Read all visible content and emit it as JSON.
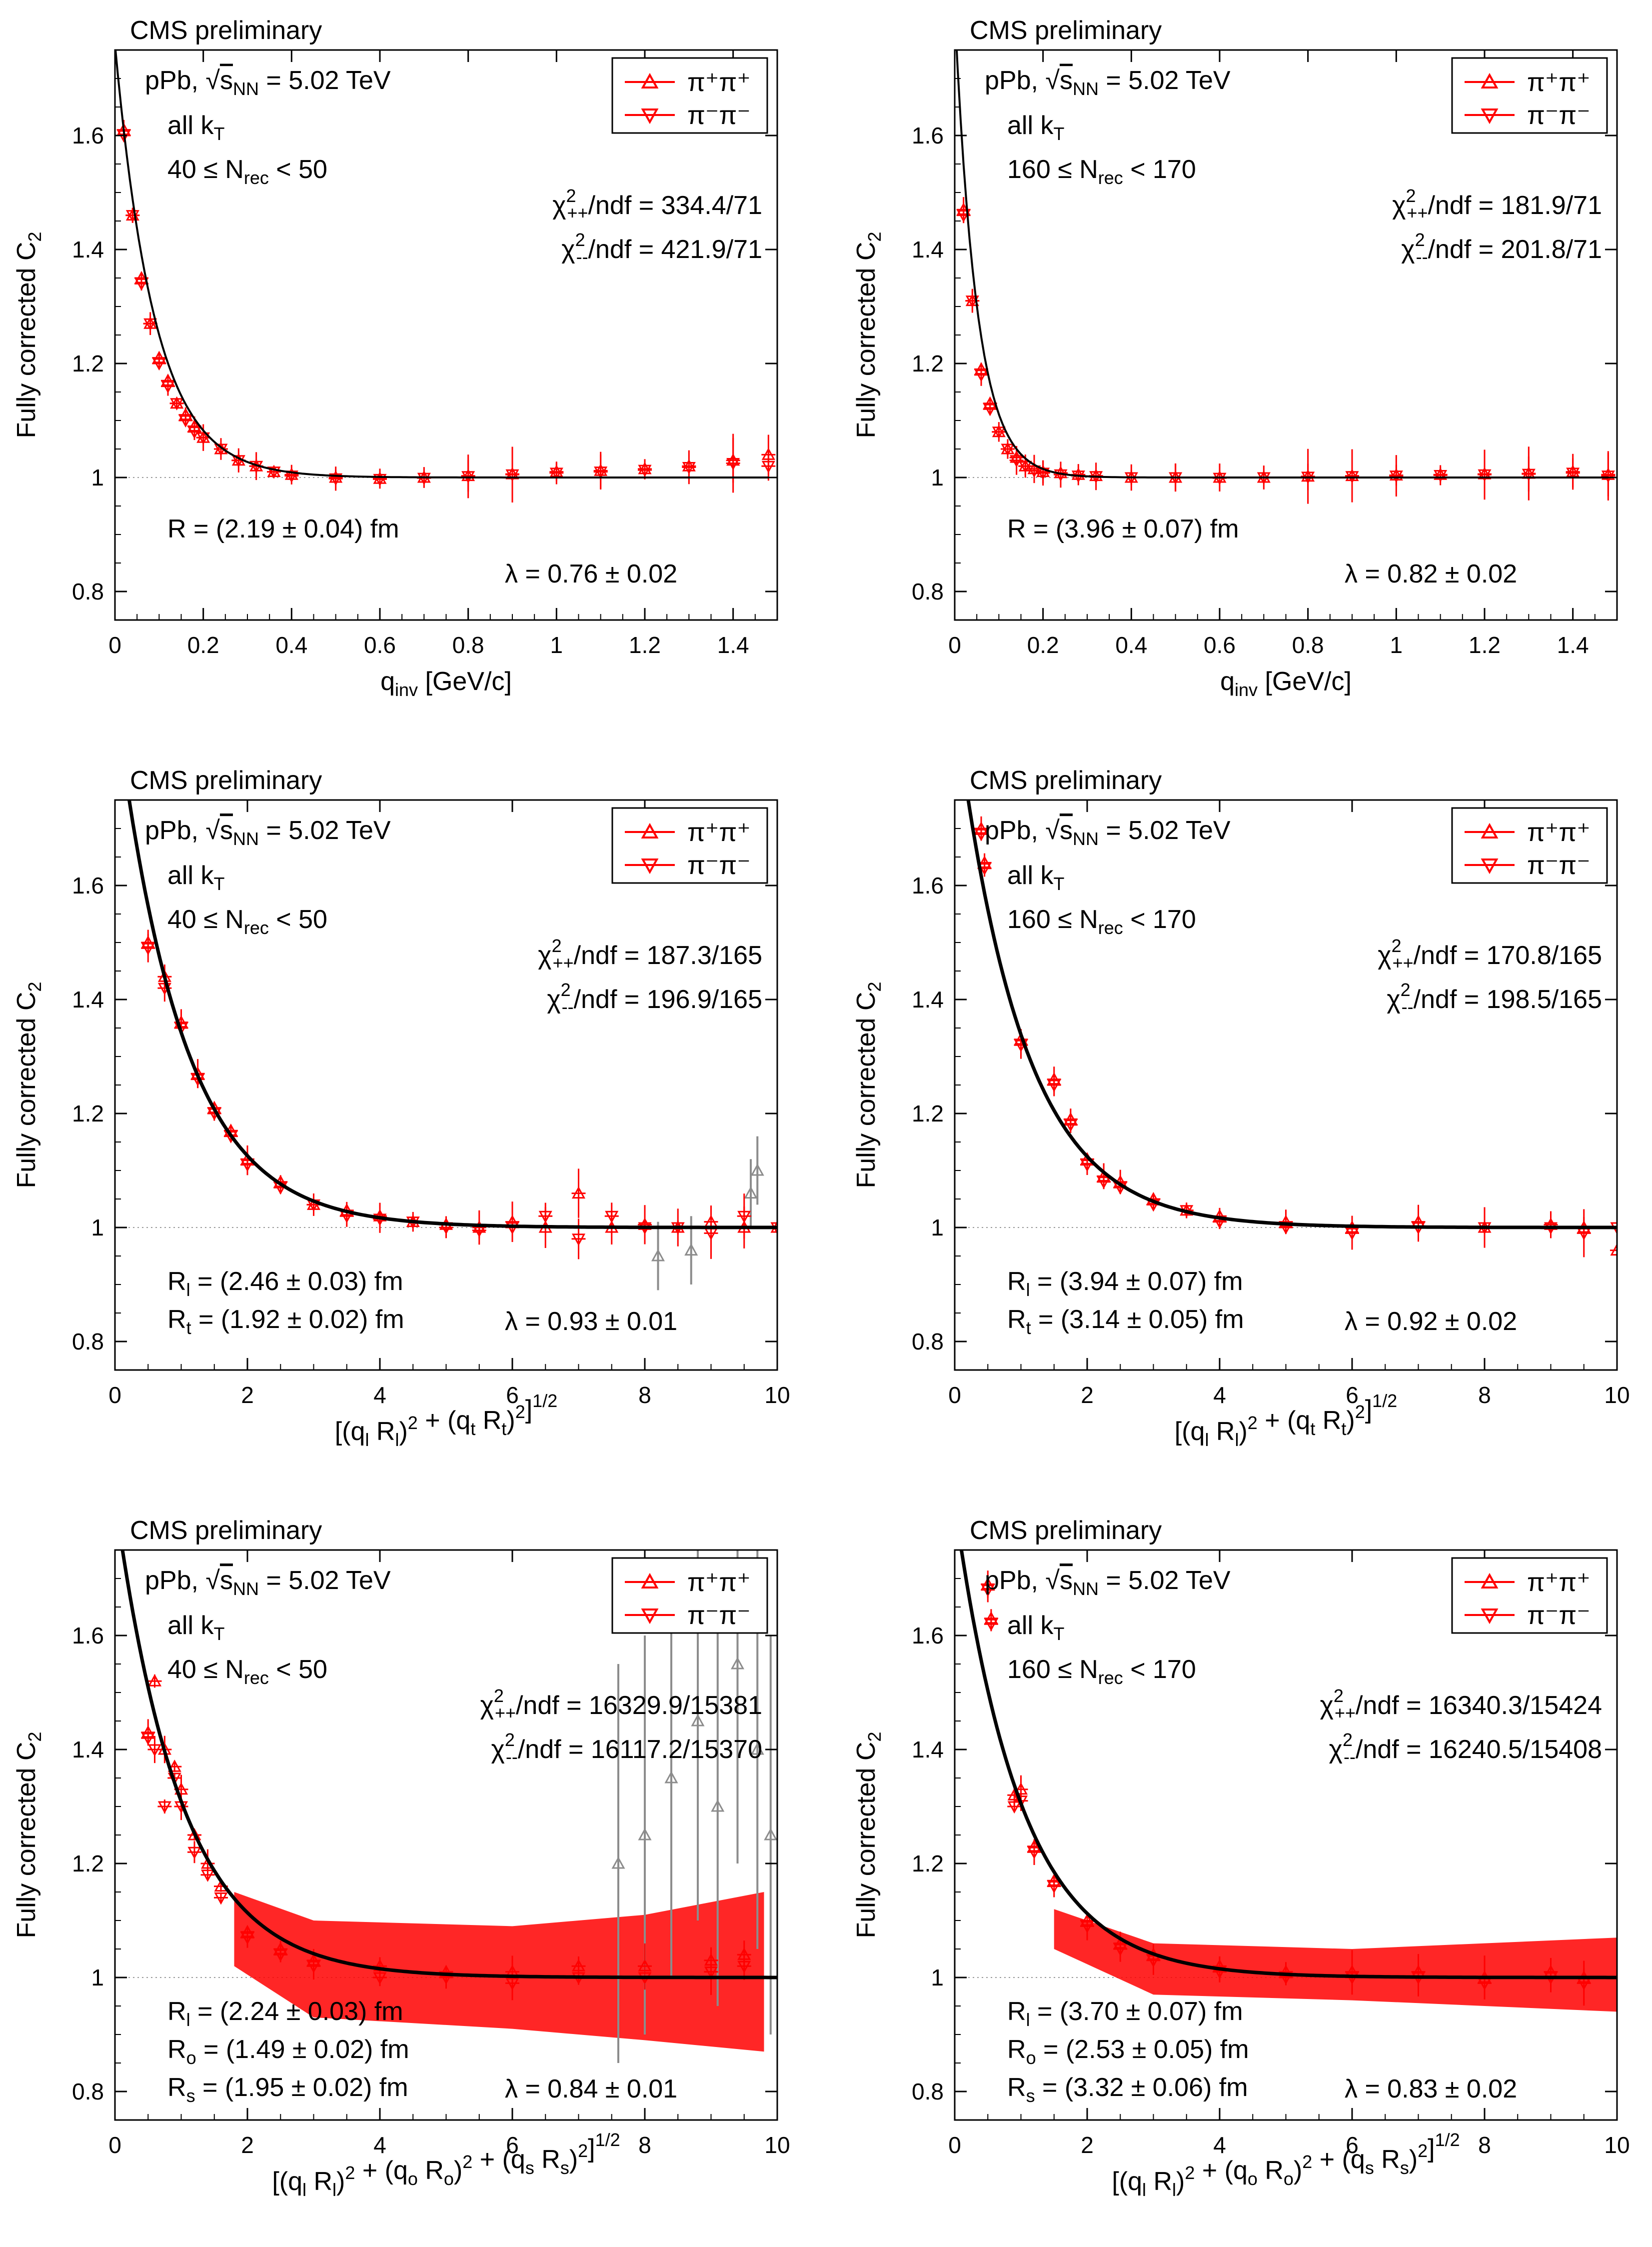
{
  "colors": {
    "pp": "#ff0000",
    "mm": "#ff0000",
    "tail": "#8c8c8c",
    "fit": "#000000",
    "ref": "#999999"
  },
  "common": {
    "header": "CMS preliminary",
    "system": "pPb,",
    "sqrt_sym": "√",
    "s_letter": "s",
    "s_sub": "NN",
    "energy": " = 5.02 TeV",
    "kt": "all k",
    "kt_sub": "T",
    "ylabel": "Fully corrected C",
    "ylabel_sub": "2",
    "legend_pp": "π⁺π⁺",
    "legend_mm": "π⁻π⁻",
    "chi_sym": "χ",
    "chi_sup": "2",
    "chi_pp_sub": "++",
    "chi_mm_sub": "--",
    "ndf_prefix": "/ndf = "
  },
  "chart_data": [
    {
      "type": "scatter",
      "id": "p1",
      "title": "CMS preliminary",
      "xlabel": "q_inv [GeV/c]",
      "ylabel": "Fully corrected C2",
      "xlim": [
        0,
        1.5
      ],
      "ylim": [
        0.75,
        1.75
      ],
      "xticks": [
        "0",
        "0.2",
        "0.4",
        "0.6",
        "0.8",
        "1",
        "1.2",
        "1.4"
      ],
      "xtick_vals": [
        0,
        0.2,
        0.4,
        0.6,
        0.8,
        1,
        1.2,
        1.4
      ],
      "yticks": [
        "0.8",
        "1",
        "1.2",
        "1.4",
        "1.6"
      ],
      "ytick_vals": [
        0.8,
        1,
        1.2,
        1.4,
        1.6
      ],
      "nrec": "40 ≤ N",
      "nrec_sub": "rec",
      "nrec_end": " < 50",
      "chi_pp": "334.4/71",
      "chi_mm": "421.9/71",
      "radii": [
        {
          "sym": "R",
          "sub": "",
          "val": " = (2.19 ± 0.04) fm"
        }
      ],
      "lambda": "λ = 0.76 ± 0.02",
      "fit": {
        "lambda": 0.76,
        "scale": 11.1,
        "xmax": 1.48
      },
      "series": [
        {
          "name": "π⁺π⁺",
          "x": [
            0.02,
            0.04,
            0.06,
            0.08,
            0.1,
            0.12,
            0.14,
            0.16,
            0.18,
            0.2,
            0.24,
            0.28,
            0.32,
            0.36,
            0.4,
            0.5,
            0.6,
            0.7,
            0.8,
            0.9,
            1.0,
            1.1,
            1.2,
            1.3,
            1.4,
            1.48
          ],
          "y": [
            1.61,
            1.46,
            1.35,
            1.27,
            1.21,
            1.17,
            1.13,
            1.11,
            1.09,
            1.07,
            1.05,
            1.03,
            1.02,
            1.01,
            1.005,
            1.0,
            0.998,
            1.0,
            1.003,
            1.006,
            1.01,
            1.012,
            1.015,
            1.02,
            1.03,
            1.04
          ]
        },
        {
          "name": "π⁻π⁻",
          "x": [
            0.02,
            0.04,
            0.06,
            0.08,
            0.1,
            0.12,
            0.14,
            0.16,
            0.18,
            0.2,
            0.24,
            0.28,
            0.32,
            0.36,
            0.4,
            0.5,
            0.6,
            0.7,
            0.8,
            0.9,
            1.0,
            1.1,
            1.2,
            1.3,
            1.4,
            1.48
          ],
          "y": [
            1.6,
            1.46,
            1.34,
            1.27,
            1.2,
            1.16,
            1.13,
            1.1,
            1.08,
            1.07,
            1.05,
            1.03,
            1.02,
            1.01,
            1.003,
            0.998,
            0.997,
            0.999,
            1.002,
            1.005,
            1.008,
            1.01,
            1.013,
            1.018,
            1.025,
            1.02
          ]
        }
      ]
    },
    {
      "type": "scatter",
      "id": "p2",
      "title": "CMS preliminary",
      "xlabel": "q_inv [GeV/c]",
      "ylabel": "Fully corrected C2",
      "xlim": [
        0,
        1.5
      ],
      "ylim": [
        0.75,
        1.75
      ],
      "xticks": [
        "0",
        "0.2",
        "0.4",
        "0.6",
        "0.8",
        "1",
        "1.2",
        "1.4"
      ],
      "xtick_vals": [
        0,
        0.2,
        0.4,
        0.6,
        0.8,
        1,
        1.2,
        1.4
      ],
      "yticks": [
        "0.8",
        "1",
        "1.2",
        "1.4",
        "1.6"
      ],
      "ytick_vals": [
        0.8,
        1,
        1.2,
        1.4,
        1.6
      ],
      "nrec": "160 ≤ N",
      "nrec_sub": "rec",
      "nrec_end": " < 170",
      "chi_pp": "181.9/71",
      "chi_mm": "201.8/71",
      "radii": [
        {
          "sym": "R",
          "sub": "",
          "val": " = (3.96 ± 0.07) fm"
        }
      ],
      "lambda": "λ = 0.82 ± 0.02",
      "fit": {
        "lambda": 0.82,
        "scale": 20.0,
        "xmax": 1.48
      },
      "series": [
        {
          "name": "π⁺π⁺",
          "x": [
            0.02,
            0.04,
            0.06,
            0.08,
            0.1,
            0.12,
            0.14,
            0.16,
            0.18,
            0.2,
            0.24,
            0.28,
            0.32,
            0.4,
            0.5,
            0.6,
            0.7,
            0.8,
            0.9,
            1.0,
            1.1,
            1.2,
            1.3,
            1.4,
            1.48
          ],
          "y": [
            1.47,
            1.31,
            1.19,
            1.13,
            1.08,
            1.05,
            1.035,
            1.02,
            1.015,
            1.01,
            1.008,
            1.005,
            1.003,
            1.0,
            1.0,
            1.0,
            1.0,
            1.002,
            1.003,
            1.004,
            1.005,
            1.006,
            1.007,
            1.01,
            1.005
          ]
        },
        {
          "name": "π⁻π⁻",
          "x": [
            0.02,
            0.04,
            0.06,
            0.08,
            0.1,
            0.12,
            0.14,
            0.16,
            0.18,
            0.2,
            0.24,
            0.28,
            0.32,
            0.4,
            0.5,
            0.6,
            0.7,
            0.8,
            0.9,
            1.0,
            1.1,
            1.2,
            1.3,
            1.4,
            1.48
          ],
          "y": [
            1.46,
            1.31,
            1.18,
            1.12,
            1.08,
            1.05,
            1.03,
            1.02,
            1.012,
            1.008,
            1.005,
            1.003,
            1.002,
            1.0,
            1.0,
            0.999,
            1.0,
            1.001,
            1.002,
            1.003,
            1.004,
            1.005,
            1.006,
            1.008,
            1.003
          ]
        }
      ]
    },
    {
      "type": "scatter",
      "id": "p3",
      "title": "CMS preliminary",
      "xlabel": "[(q_l R_l)^2 + (q_t R_t)^2]^1/2",
      "ylabel": "Fully corrected C2",
      "xlim": [
        0,
        10
      ],
      "ylim": [
        0.75,
        1.75
      ],
      "xticks": [
        "0",
        "2",
        "4",
        "6",
        "8",
        "10"
      ],
      "xtick_vals": [
        0,
        2,
        4,
        6,
        8,
        10
      ],
      "yticks": [
        "0.8",
        "1",
        "1.2",
        "1.4",
        "1.6"
      ],
      "ytick_vals": [
        0.8,
        1,
        1.2,
        1.4,
        1.6
      ],
      "nrec": "40 ≤ N",
      "nrec_sub": "rec",
      "nrec_end": " < 50",
      "chi_pp": "187.3/165",
      "chi_mm": "196.9/165",
      "radii": [
        {
          "sym": "R",
          "sub": "l",
          "val": " = (2.46 ± 0.03) fm"
        },
        {
          "sym": "R",
          "sub": "t",
          "val": " = (1.92 ± 0.02) fm"
        }
      ],
      "lambda": "λ = 0.93 ± 0.01",
      "fit": {
        "lambda": 0.93,
        "scale": 1.0,
        "xmax": 10
      },
      "series": [
        {
          "name": "π⁺π⁺",
          "x": [
            0.5,
            0.75,
            1.0,
            1.25,
            1.5,
            1.75,
            2.0,
            2.5,
            3.0,
            3.5,
            4.0,
            4.5,
            5.0,
            5.5,
            6.0,
            6.5,
            7.0,
            7.5,
            8.0,
            8.5,
            9.0,
            9.5,
            10.0
          ],
          "y": [
            1.5,
            1.44,
            1.36,
            1.27,
            1.21,
            1.17,
            1.12,
            1.08,
            1.04,
            1.03,
            1.02,
            1.01,
            1.005,
            1.0,
            1.01,
            1.0,
            1.06,
            1.0,
            1.005,
            1.0,
            1.01,
            1.0,
            1.0
          ]
        },
        {
          "name": "π⁻π⁻",
          "x": [
            0.5,
            0.75,
            1.0,
            1.25,
            1.5,
            1.75,
            2.0,
            2.5,
            3.0,
            3.5,
            4.0,
            4.5,
            5.0,
            5.5,
            6.0,
            6.5,
            7.0,
            7.5,
            8.0,
            8.5,
            9.0,
            9.5,
            10.0
          ],
          "y": [
            1.49,
            1.42,
            1.35,
            1.26,
            1.2,
            1.16,
            1.11,
            1.07,
            1.04,
            1.02,
            1.015,
            1.01,
            1.0,
            0.995,
            1.0,
            1.02,
            0.98,
            1.02,
            1.0,
            1.0,
            0.99,
            1.02,
            1.0
          ]
        }
      ],
      "tail": {
        "x": [
          8.2,
          8.7,
          9.6,
          9.7
        ],
        "y": [
          0.95,
          0.96,
          1.06,
          1.1
        ]
      }
    },
    {
      "type": "scatter",
      "id": "p4",
      "title": "CMS preliminary",
      "xlabel": "[(q_l R_l)^2 + (q_t R_t)^2]^1/2",
      "ylabel": "Fully corrected C2",
      "xlim": [
        0,
        10
      ],
      "ylim": [
        0.75,
        1.75
      ],
      "xticks": [
        "0",
        "2",
        "4",
        "6",
        "8",
        "10"
      ],
      "xtick_vals": [
        0,
        2,
        4,
        6,
        8,
        10
      ],
      "yticks": [
        "0.8",
        "1",
        "1.2",
        "1.4",
        "1.6"
      ],
      "ytick_vals": [
        0.8,
        1,
        1.2,
        1.4,
        1.6
      ],
      "nrec": "160 ≤ N",
      "nrec_sub": "rec",
      "nrec_end": " < 170",
      "chi_pp": "170.8/165",
      "chi_mm": "198.5/165",
      "radii": [
        {
          "sym": "R",
          "sub": "l",
          "val": " = (3.94 ± 0.07) fm"
        },
        {
          "sym": "R",
          "sub": "t",
          "val": " = (3.14 ± 0.05) fm"
        }
      ],
      "lambda": "λ = 0.92 ± 0.02",
      "fit": {
        "lambda": 0.92,
        "scale": 1.0,
        "xmax": 10
      },
      "series": [
        {
          "name": "π⁺π⁺",
          "x": [
            0.4,
            0.45,
            1.0,
            1.5,
            1.75,
            2.0,
            2.25,
            2.5,
            3.0,
            3.5,
            4.0,
            5.0,
            6.0,
            7.0,
            8.0,
            9.0,
            9.5,
            10.0
          ],
          "y": [
            1.7,
            1.64,
            1.33,
            1.26,
            1.19,
            1.12,
            1.09,
            1.08,
            1.05,
            1.03,
            1.02,
            1.01,
            1.0,
            1.01,
            1.0,
            1.005,
            1.0,
            0.96
          ]
        },
        {
          "name": "π⁻π⁻",
          "x": [
            0.4,
            0.45,
            1.0,
            1.5,
            1.75,
            2.0,
            2.25,
            2.5,
            3.0,
            3.5,
            4.0,
            5.0,
            6.0,
            7.0,
            8.0,
            9.0,
            9.5,
            10.0
          ],
          "y": [
            1.69,
            1.63,
            1.32,
            1.25,
            1.18,
            1.11,
            1.08,
            1.07,
            1.04,
            1.03,
            1.01,
            1.0,
            0.99,
            1.0,
            1.0,
            1.0,
            0.99,
            1.0
          ]
        }
      ]
    },
    {
      "type": "scatter",
      "id": "p5",
      "title": "CMS preliminary",
      "xlabel": "[(q_l R_l)^2 + (q_o R_o)^2 + (q_s R_s)^2]^1/2",
      "ylabel": "Fully corrected C2",
      "xlim": [
        0,
        10
      ],
      "ylim": [
        0.75,
        1.75
      ],
      "xticks": [
        "0",
        "2",
        "4",
        "6",
        "8",
        "10"
      ],
      "xtick_vals": [
        0,
        2,
        4,
        6,
        8,
        10
      ],
      "yticks": [
        "0.8",
        "1",
        "1.2",
        "1.4",
        "1.6"
      ],
      "ytick_vals": [
        0.8,
        1,
        1.2,
        1.4,
        1.6
      ],
      "nrec": "40 ≤ N",
      "nrec_sub": "rec",
      "nrec_end": " < 50",
      "chi_pp": "16329.9/15381",
      "chi_mm": "16117.2/15370",
      "radii": [
        {
          "sym": "R",
          "sub": "l",
          "val": " = (2.24 ± 0.03) fm"
        },
        {
          "sym": "R",
          "sub": "o",
          "val": " = (1.49 ± 0.02) fm"
        },
        {
          "sym": "R",
          "sub": "s",
          "val": " = (1.95 ± 0.02) fm"
        }
      ],
      "lambda": "λ = 0.84 ± 0.01",
      "fit": {
        "lambda": 0.84,
        "scale": 1.0,
        "xmax": 10
      },
      "series": [
        {
          "name": "π⁺π⁺",
          "x": [
            0.5,
            0.6,
            0.75,
            0.9,
            1.0,
            1.2,
            1.4,
            1.6,
            2.0,
            2.5,
            3.0,
            4.0,
            5.0,
            6.0,
            7.0,
            8.0,
            9.0,
            9.5
          ],
          "y": [
            1.43,
            1.52,
            1.4,
            1.37,
            1.33,
            1.25,
            1.2,
            1.16,
            1.08,
            1.05,
            1.03,
            1.02,
            1.01,
            1.01,
            1.02,
            1.02,
            1.03,
            1.04
          ]
        },
        {
          "name": "π⁻π⁻",
          "x": [
            0.5,
            0.6,
            0.75,
            0.9,
            1.0,
            1.2,
            1.4,
            1.6,
            2.0,
            2.5,
            3.0,
            4.0,
            5.0,
            6.0,
            7.0,
            8.0,
            9.0,
            9.5
          ],
          "y": [
            1.42,
            1.4,
            1.3,
            1.35,
            1.3,
            1.22,
            1.18,
            1.14,
            1.07,
            1.04,
            1.02,
            1.0,
            1.0,
            0.99,
            1.0,
            1.0,
            1.01,
            1.02
          ]
        }
      ],
      "tail": {
        "x": [
          7.6,
          8.0,
          8.4,
          8.8,
          9.1,
          9.4,
          9.7,
          9.9
        ],
        "y": [
          1.2,
          1.25,
          1.35,
          1.45,
          1.3,
          1.55,
          1.4,
          1.25
        ]
      }
    },
    {
      "type": "scatter",
      "id": "p6",
      "title": "CMS preliminary",
      "xlabel": "[(q_l R_l)^2 + (q_o R_o)^2 + (q_s R_s)^2]^1/2",
      "ylabel": "Fully corrected C2",
      "xlim": [
        0,
        10
      ],
      "ylim": [
        0.75,
        1.75
      ],
      "xticks": [
        "0",
        "2",
        "4",
        "6",
        "8",
        "10"
      ],
      "xtick_vals": [
        0,
        2,
        4,
        6,
        8,
        10
      ],
      "yticks": [
        "0.8",
        "1",
        "1.2",
        "1.4",
        "1.6"
      ],
      "ytick_vals": [
        0.8,
        1,
        1.2,
        1.4,
        1.6
      ],
      "nrec": "160 ≤ N",
      "nrec_sub": "rec",
      "nrec_end": " < 170",
      "chi_pp": "16340.3/15424",
      "chi_mm": "16240.5/15408",
      "radii": [
        {
          "sym": "R",
          "sub": "l",
          "val": " = (3.70 ± 0.07) fm"
        },
        {
          "sym": "R",
          "sub": "o",
          "val": " = (2.53 ± 0.05) fm"
        },
        {
          "sym": "R",
          "sub": "s",
          "val": " = (3.32 ± 0.06) fm"
        }
      ],
      "lambda": "λ = 0.83 ± 0.02",
      "fit": {
        "lambda": 0.83,
        "scale": 1.0,
        "xmax": 10
      },
      "series": [
        {
          "name": "π⁺π⁺",
          "x": [
            0.5,
            0.55,
            0.9,
            1.0,
            1.2,
            1.5,
            2.0,
            2.5,
            3.0,
            4.0,
            5.0,
            6.0,
            7.0,
            8.0,
            9.0,
            9.5
          ],
          "y": [
            1.69,
            1.63,
            1.32,
            1.33,
            1.23,
            1.17,
            1.1,
            1.06,
            1.04,
            1.02,
            1.01,
            1.01,
            1.01,
            1.0,
            1.01,
            1.0
          ]
        },
        {
          "name": "π⁻π⁻",
          "x": [
            0.5,
            0.55,
            0.9,
            1.0,
            1.2,
            1.5,
            2.0,
            2.5,
            3.0,
            4.0,
            5.0,
            6.0,
            7.0,
            8.0,
            9.0,
            9.5
          ],
          "y": [
            1.68,
            1.62,
            1.3,
            1.31,
            1.22,
            1.16,
            1.09,
            1.05,
            1.03,
            1.01,
            1.0,
            1.0,
            1.0,
            0.99,
            1.0,
            0.99
          ]
        }
      ]
    }
  ]
}
